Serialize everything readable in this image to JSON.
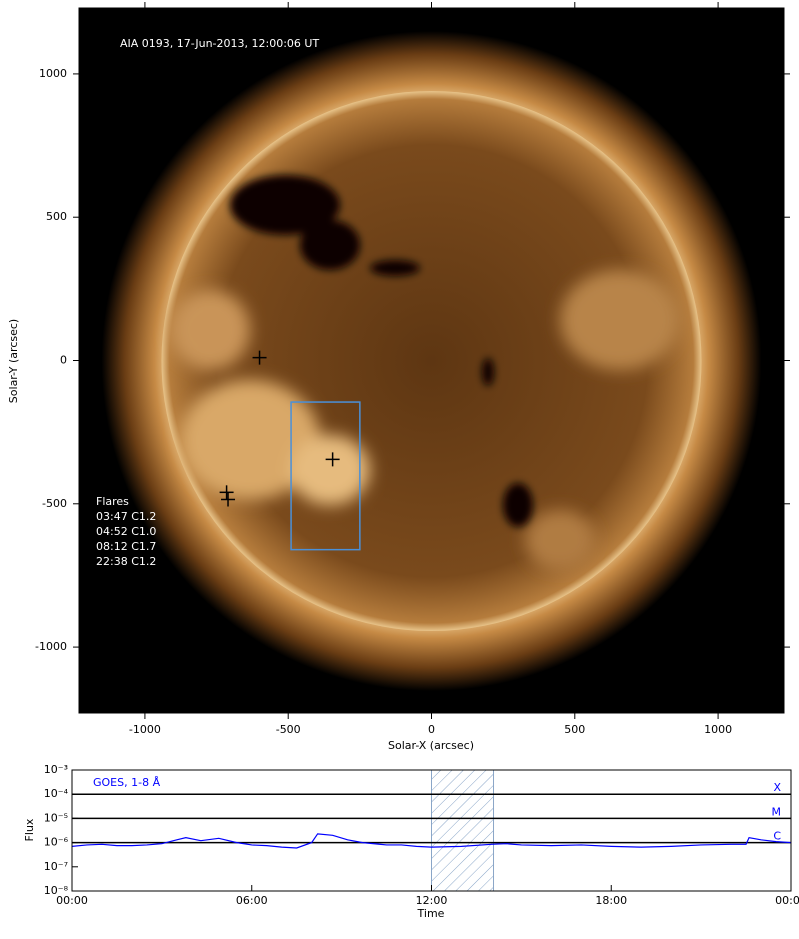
{
  "chart_data": [
    {
      "type": "image",
      "title": "AIA 0193, 17-Jun-2013, 12:00:06 UT",
      "x_label": "Solar-X (arcsec)",
      "y_label": "Solar-Y (arcsec)",
      "xlim": [
        -1230,
        1230
      ],
      "ylim": [
        -1230,
        1230
      ],
      "xticks": [
        -1000,
        -500,
        0,
        500,
        1000
      ],
      "yticks": [
        -1000,
        -500,
        0,
        500,
        1000
      ],
      "markers": {
        "x": [
          -600,
          -345,
          -715,
          -710
        ],
        "y": [
          10,
          -345,
          -460,
          -485
        ],
        "color": "#000000"
      },
      "box": {
        "x": [
          -490,
          -250
        ],
        "y": [
          -660,
          -145
        ],
        "color": "#4a90d9"
      },
      "flares_title": "Flares",
      "flares": [
        "03:47 C1.2",
        "04:52 C1.0",
        "08:12 C1.7",
        "22:38 C1.2"
      ]
    },
    {
      "type": "line",
      "x_label": "Time",
      "y_label": "Flux",
      "log_y": true,
      "xlim": [
        0,
        24
      ],
      "ylim": [
        1e-08,
        0.001
      ],
      "xticks": [
        {
          "value": 0,
          "label": "00:00"
        },
        {
          "value": 6,
          "label": "06:00"
        },
        {
          "value": 12,
          "label": "12:00"
        },
        {
          "value": 18,
          "label": "18:00"
        },
        {
          "value": 24,
          "label": "00:00"
        }
      ],
      "yticks": [
        {
          "value": 1e-08,
          "label": "10⁻⁸"
        },
        {
          "value": 1e-07,
          "label": "10⁻⁷"
        },
        {
          "value": 1e-06,
          "label": "10⁻⁶"
        },
        {
          "value": 1e-05,
          "label": "10⁻⁵"
        },
        {
          "value": 0.0001,
          "label": "10⁻⁴"
        },
        {
          "value": 0.001,
          "label": "10⁻³"
        }
      ],
      "levels": [
        {
          "value": 0.0001,
          "label": "X"
        },
        {
          "value": 1e-05,
          "label": "M"
        },
        {
          "value": 1e-06,
          "label": "C"
        }
      ],
      "highlight": [
        12,
        14.07
      ],
      "x": [
        0,
        0.5,
        1,
        1.5,
        2,
        2.5,
        3,
        3.5,
        3.8,
        4.3,
        4.9,
        5.5,
        6,
        6.5,
        7,
        7.5,
        8,
        8.2,
        8.7,
        9.2,
        9.7,
        10.5,
        11,
        11.5,
        12,
        13,
        14,
        14.5,
        15,
        16,
        17,
        18,
        19,
        20,
        21,
        22,
        22.5,
        22.6,
        23,
        23.5,
        24
      ],
      "series": [
        {
          "name": "GOES, 1-8 Å",
          "color": "#0000ff",
          "values": [
            7e-07,
            8e-07,
            8.5e-07,
            7.5e-07,
            7.5e-07,
            8e-07,
            9e-07,
            1.3e-06,
            1.6e-06,
            1.2e-06,
            1.5e-06,
            1e-06,
            8e-07,
            7.5e-07,
            6.5e-07,
            6e-07,
            1e-06,
            2.3e-06,
            2e-06,
            1.3e-06,
            1e-06,
            8e-07,
            8e-07,
            7e-07,
            6.5e-07,
            7e-07,
            8.5e-07,
            9e-07,
            8e-07,
            7.5e-07,
            8e-07,
            7e-07,
            6.5e-07,
            7e-07,
            8e-07,
            8.5e-07,
            8.5e-07,
            1.6e-06,
            1.3e-06,
            1.1e-06,
            1e-06
          ]
        }
      ]
    }
  ]
}
